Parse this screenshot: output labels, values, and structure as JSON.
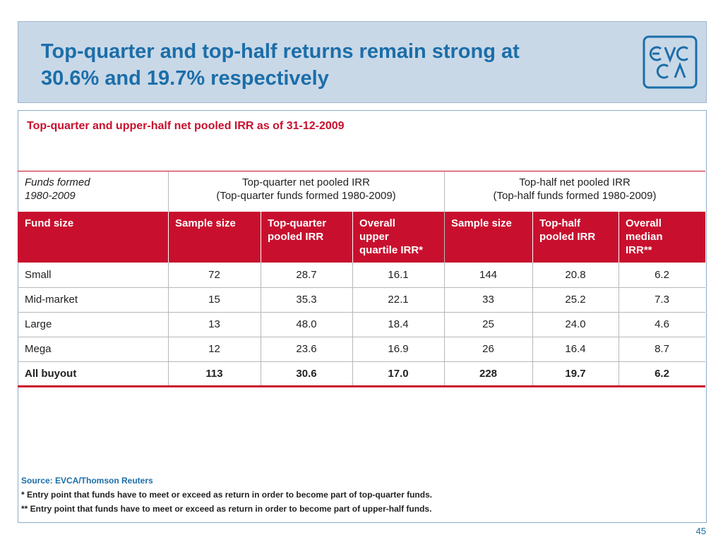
{
  "header": {
    "title_lines": [
      "Top-quarter and top-half returns remain strong at",
      "30.6% and 19.7% respectively"
    ]
  },
  "subtitle": "Top-quarter and upper-half net pooled IRR as of 31-12-2009",
  "table": {
    "group_header": [
      [
        "Funds formed",
        "1980-2009"
      ],
      [
        "Top-quarter net pooled IRR",
        "(Top-quarter funds formed 1980-2009)"
      ],
      [
        "Top-half net pooled IRR",
        "(Top-half funds formed 1980-2009)"
      ]
    ],
    "columns": [
      [
        "Fund size"
      ],
      [
        "Sample size"
      ],
      [
        "Top-quarter",
        "pooled IRR"
      ],
      [
        "Overall",
        "upper",
        "quartile IRR*"
      ],
      [
        "Sample size"
      ],
      [
        "Top-half",
        "pooled IRR"
      ],
      [
        "Overall",
        "median",
        "IRR**"
      ]
    ],
    "rows": [
      [
        "Small",
        "72",
        "28.7",
        "16.1",
        "144",
        "20.8",
        "6.2"
      ],
      [
        "Mid-market",
        "15",
        "35.3",
        "22.1",
        "33",
        "25.2",
        "7.3"
      ],
      [
        "Large",
        "13",
        "48.0",
        "18.4",
        "25",
        "24.0",
        "4.6"
      ],
      [
        "Mega",
        "12",
        "23.6",
        "16.9",
        "26",
        "16.4",
        "8.7"
      ],
      [
        "All buyout",
        "113",
        "30.6",
        "17.0",
        "228",
        "19.7",
        "6.2"
      ]
    ]
  },
  "footnotes": {
    "source": "Source: EVCA/Thomson Reuters",
    "notes": [
      "* Entry point that funds have to meet or exceed as return in order to become part of top-quarter funds.",
      "** Entry point that funds have to meet or exceed as return in order to become part of upper-half funds."
    ]
  },
  "page_number": "45"
}
